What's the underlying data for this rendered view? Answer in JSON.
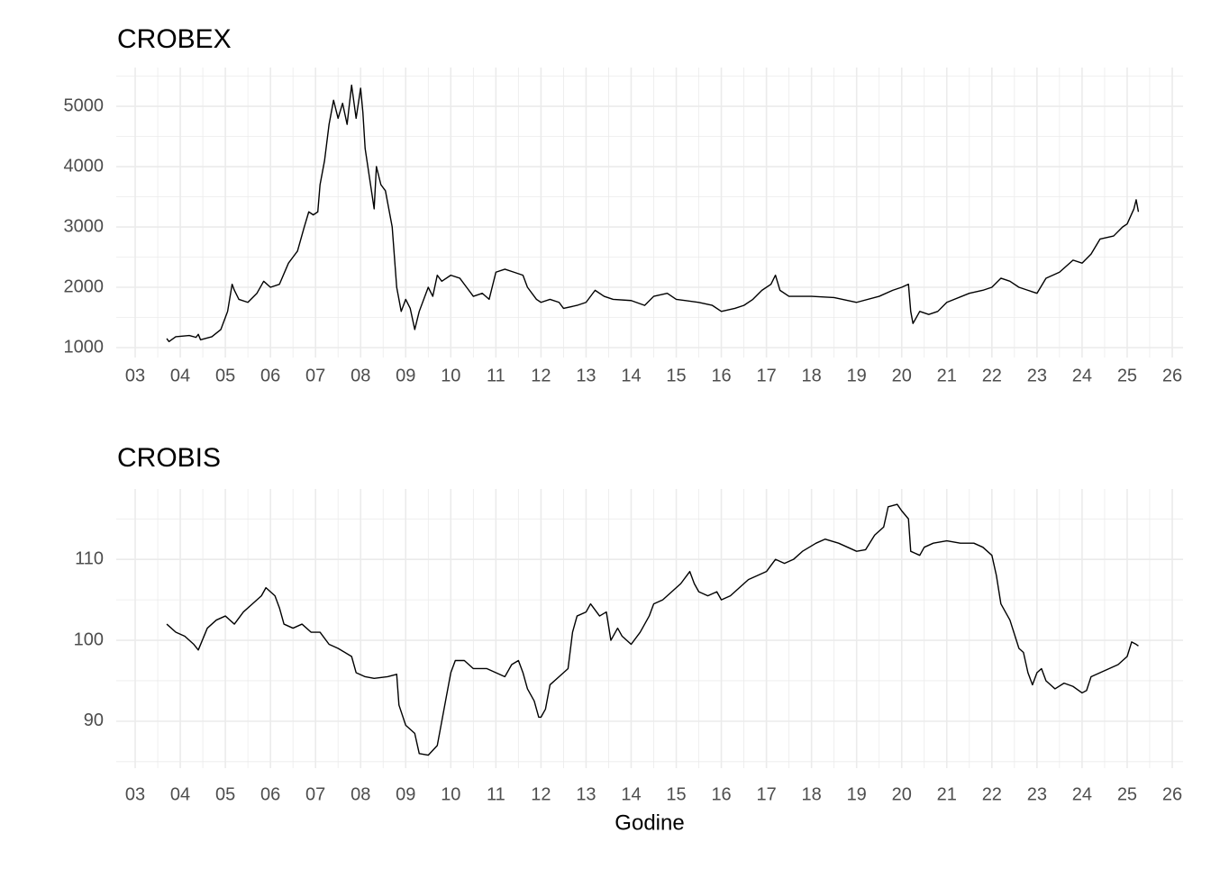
{
  "chart_data": [
    {
      "type": "line",
      "title": "CROBEX",
      "color": "#000000",
      "grid": true,
      "x": [
        3.7,
        3.75,
        3.9,
        4.2,
        4.35,
        4.4,
        4.45,
        4.7,
        4.9,
        5.0,
        5.05,
        5.15,
        5.2,
        5.3,
        5.5,
        5.7,
        5.85,
        6.0,
        6.2,
        6.4,
        6.5,
        6.6,
        6.75,
        6.85,
        6.95,
        7.05,
        7.1,
        7.2,
        7.3,
        7.4,
        7.5,
        7.6,
        7.7,
        7.8,
        7.9,
        8.0,
        8.05,
        8.1,
        8.2,
        8.3,
        8.35,
        8.45,
        8.55,
        8.7,
        8.8,
        8.9,
        9.0,
        9.1,
        9.2,
        9.3,
        9.4,
        9.5,
        9.6,
        9.7,
        9.8,
        10.0,
        10.2,
        10.35,
        10.5,
        10.7,
        10.85,
        11.0,
        11.2,
        11.4,
        11.6,
        11.7,
        11.9,
        12.0,
        12.2,
        12.4,
        12.5,
        12.8,
        13.0,
        13.2,
        13.4,
        13.6,
        14.0,
        14.3,
        14.5,
        14.8,
        15.0,
        15.5,
        15.8,
        16.0,
        16.3,
        16.5,
        16.7,
        16.9,
        17.1,
        17.2,
        17.3,
        17.5,
        18.0,
        18.5,
        19.0,
        19.5,
        19.8,
        20.0,
        20.15,
        20.2,
        20.25,
        20.4,
        20.6,
        20.8,
        21.0,
        21.5,
        21.8,
        22.0,
        22.2,
        22.4,
        22.6,
        22.8,
        23.0,
        23.2,
        23.5,
        23.8,
        24.0,
        24.2,
        24.4,
        24.7,
        24.9,
        25.0,
        25.15,
        25.2,
        25.25
      ],
      "values": [
        1150,
        1100,
        1180,
        1200,
        1170,
        1220,
        1130,
        1180,
        1300,
        1500,
        1600,
        2050,
        1950,
        1800,
        1750,
        1900,
        2100,
        2000,
        2050,
        2400,
        2500,
        2600,
        3000,
        3250,
        3200,
        3250,
        3700,
        4100,
        4700,
        5100,
        4800,
        5050,
        4700,
        5350,
        4800,
        5300,
        4900,
        4300,
        3800,
        3300,
        4000,
        3700,
        3600,
        3000,
        2000,
        1600,
        1800,
        1650,
        1300,
        1600,
        1800,
        2000,
        1850,
        2200,
        2100,
        2200,
        2150,
        2000,
        1850,
        1900,
        1800,
        2250,
        2300,
        2250,
        2200,
        2000,
        1800,
        1750,
        1800,
        1750,
        1650,
        1700,
        1750,
        1950,
        1850,
        1800,
        1780,
        1700,
        1850,
        1900,
        1800,
        1750,
        1700,
        1600,
        1650,
        1700,
        1800,
        1950,
        2050,
        2200,
        1950,
        1850,
        1850,
        1830,
        1750,
        1850,
        1950,
        2000,
        2050,
        1600,
        1400,
        1600,
        1550,
        1600,
        1750,
        1900,
        1950,
        2000,
        2150,
        2100,
        2000,
        1950,
        1900,
        2150,
        2250,
        2450,
        2400,
        2550,
        2800,
        2850,
        3000,
        3050,
        3300,
        3450,
        3250
      ],
      "xlim": [
        2.58,
        26.24
      ],
      "ylim": [
        836,
        5642
      ],
      "xticks": [
        {
          "value": 3,
          "label": "03"
        },
        {
          "value": 4,
          "label": "04"
        },
        {
          "value": 5,
          "label": "05"
        },
        {
          "value": 6,
          "label": "06"
        },
        {
          "value": 7,
          "label": "07"
        },
        {
          "value": 8,
          "label": "08"
        },
        {
          "value": 9,
          "label": "09"
        },
        10,
        11,
        12,
        13,
        14,
        15,
        16,
        17,
        18,
        19,
        20,
        21,
        22,
        23,
        24,
        25,
        26
      ],
      "xminorticks": [
        3.5,
        4.5,
        5.5,
        6.5,
        7.5,
        8.5,
        9.5,
        10.5,
        11.5,
        12.5,
        13.5,
        14.5,
        15.5,
        16.5,
        17.5,
        18.5,
        19.5,
        20.5,
        21.5,
        22.5,
        23.5,
        24.5,
        25.5
      ],
      "yticks": [
        1000,
        2000,
        3000,
        4000,
        5000
      ],
      "yminorticks": [
        1500,
        2500,
        3500,
        4500,
        5500
      ]
    },
    {
      "type": "line",
      "title": "CROBIS",
      "x_label": "Godine",
      "color": "#000000",
      "grid": true,
      "x": [
        3.7,
        3.9,
        4.1,
        4.3,
        4.4,
        4.6,
        4.8,
        5.0,
        5.2,
        5.4,
        5.6,
        5.8,
        5.9,
        6.0,
        6.1,
        6.2,
        6.3,
        6.5,
        6.7,
        6.9,
        7.1,
        7.3,
        7.5,
        7.8,
        7.9,
        8.1,
        8.3,
        8.6,
        8.8,
        8.85,
        9.0,
        9.2,
        9.3,
        9.5,
        9.7,
        9.8,
        9.9,
        10.0,
        10.1,
        10.3,
        10.5,
        10.8,
        11.0,
        11.2,
        11.35,
        11.5,
        11.6,
        11.7,
        11.85,
        11.95,
        12.0,
        12.1,
        12.2,
        12.4,
        12.6,
        12.7,
        12.8,
        13.0,
        13.1,
        13.3,
        13.45,
        13.55,
        13.7,
        13.8,
        14.0,
        14.2,
        14.4,
        14.5,
        14.7,
        14.9,
        15.1,
        15.3,
        15.4,
        15.5,
        15.7,
        15.9,
        16.0,
        16.2,
        16.4,
        16.6,
        16.8,
        17.0,
        17.2,
        17.4,
        17.6,
        17.8,
        17.95,
        18.1,
        18.3,
        18.6,
        18.8,
        19.0,
        19.2,
        19.4,
        19.6,
        19.7,
        19.9,
        20.0,
        20.15,
        20.2,
        20.4,
        20.5,
        20.7,
        21.0,
        21.3,
        21.6,
        21.8,
        22.0,
        22.1,
        22.2,
        22.4,
        22.6,
        22.7,
        22.8,
        22.9,
        23.0,
        23.1,
        23.2,
        23.4,
        23.6,
        23.8,
        24.0,
        24.1,
        24.2,
        24.4,
        24.6,
        24.8,
        24.9,
        25.0,
        25.1,
        25.2,
        25.25
      ],
      "values": [
        102,
        101,
        100.5,
        99.5,
        98.8,
        101.5,
        102.5,
        103,
        102,
        103.5,
        104.5,
        105.5,
        106.5,
        106,
        105.5,
        104,
        102,
        101.5,
        102,
        101,
        101,
        99.5,
        99,
        98,
        96,
        95.5,
        95.3,
        95.5,
        95.8,
        92,
        89.5,
        88.5,
        86,
        85.8,
        87,
        90,
        93,
        96,
        97.5,
        97.5,
        96.5,
        96.5,
        96,
        95.5,
        97,
        97.5,
        96,
        94,
        92.5,
        90.5,
        90.5,
        91.5,
        94.5,
        95.5,
        96.5,
        101,
        103,
        103.5,
        104.5,
        103,
        103.5,
        100,
        101.5,
        100.5,
        99.5,
        101,
        103,
        104.5,
        105,
        106,
        107,
        108.5,
        107,
        106,
        105.5,
        106,
        105,
        105.5,
        106.5,
        107.5,
        108,
        108.5,
        110,
        109.5,
        110,
        111,
        111.5,
        112,
        112.5,
        112,
        111.5,
        111,
        111.2,
        113,
        114,
        116.5,
        116.8,
        116,
        115,
        111,
        110.5,
        111.5,
        112,
        112.3,
        112,
        112,
        111.5,
        110.5,
        108,
        104.5,
        102.5,
        99,
        98.5,
        96,
        94.5,
        96,
        96.5,
        95,
        94,
        94.7,
        94.3,
        93.5,
        93.8,
        95.5,
        96,
        96.5,
        97,
        97.5,
        98,
        99.8,
        99.5,
        99.3
      ],
      "xlim": [
        2.58,
        26.24
      ],
      "ylim": [
        84.2,
        118.7
      ],
      "xticks": [
        {
          "value": 3,
          "label": "03"
        },
        {
          "value": 4,
          "label": "04"
        },
        {
          "value": 5,
          "label": "05"
        },
        {
          "value": 6,
          "label": "06"
        },
        {
          "value": 7,
          "label": "07"
        },
        {
          "value": 8,
          "label": "08"
        },
        {
          "value": 9,
          "label": "09"
        },
        10,
        11,
        12,
        13,
        14,
        15,
        16,
        17,
        18,
        19,
        20,
        21,
        22,
        23,
        24,
        25,
        26
      ],
      "xminorticks": [
        3.5,
        4.5,
        5.5,
        6.5,
        7.5,
        8.5,
        9.5,
        10.5,
        11.5,
        12.5,
        13.5,
        14.5,
        15.5,
        16.5,
        17.5,
        18.5,
        19.5,
        20.5,
        21.5,
        22.5,
        23.5,
        24.5,
        25.5
      ],
      "yticks": [
        90,
        100,
        110
      ],
      "yminorticks": [
        85,
        95,
        105,
        115
      ]
    }
  ]
}
